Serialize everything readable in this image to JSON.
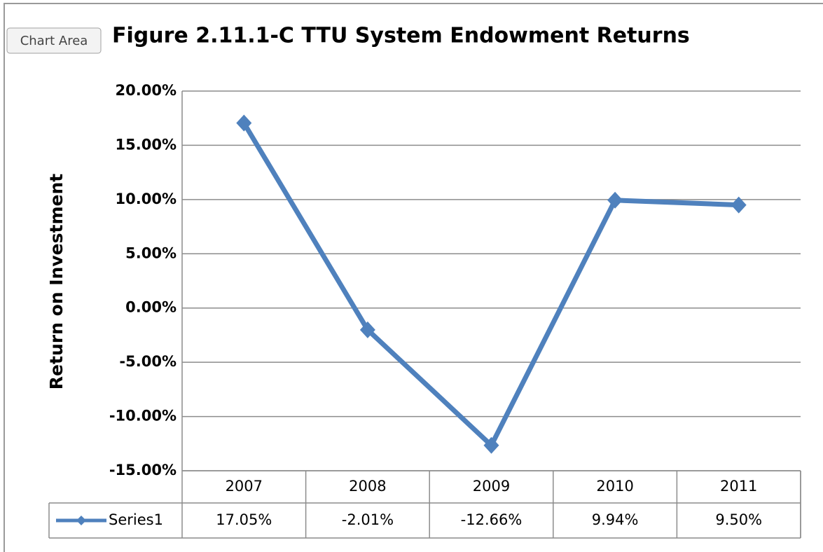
{
  "tooltip": "Chart Area",
  "chart_data": {
    "type": "line",
    "title": "Figure 2.11.1-C  TTU System Endowment Returns",
    "y_label": "Return on Investment",
    "categories": [
      "2007",
      "2008",
      "2009",
      "2010",
      "2011"
    ],
    "series": [
      {
        "name": "Series1",
        "color": "#4f81bd",
        "values": [
          17.05,
          -2.01,
          -12.66,
          9.94,
          9.5
        ],
        "value_labels": [
          "17.05%",
          "-2.01%",
          "-12.66%",
          "9.94%",
          "9.50%"
        ]
      }
    ],
    "ylim": [
      -15,
      20
    ],
    "yticks": [
      {
        "value": -15,
        "label": "-15.00%"
      },
      {
        "value": -10,
        "label": "-10.00%"
      },
      {
        "value": -5,
        "label": "-5.00%"
      },
      {
        "value": 0,
        "label": "0.00%"
      },
      {
        "value": 5,
        "label": "5.00%"
      },
      {
        "value": 10,
        "label": "10.00%"
      },
      {
        "value": 15,
        "label": "15.00%"
      },
      {
        "value": 20,
        "label": "20.00%"
      }
    ],
    "grid": true,
    "data_table": true
  }
}
